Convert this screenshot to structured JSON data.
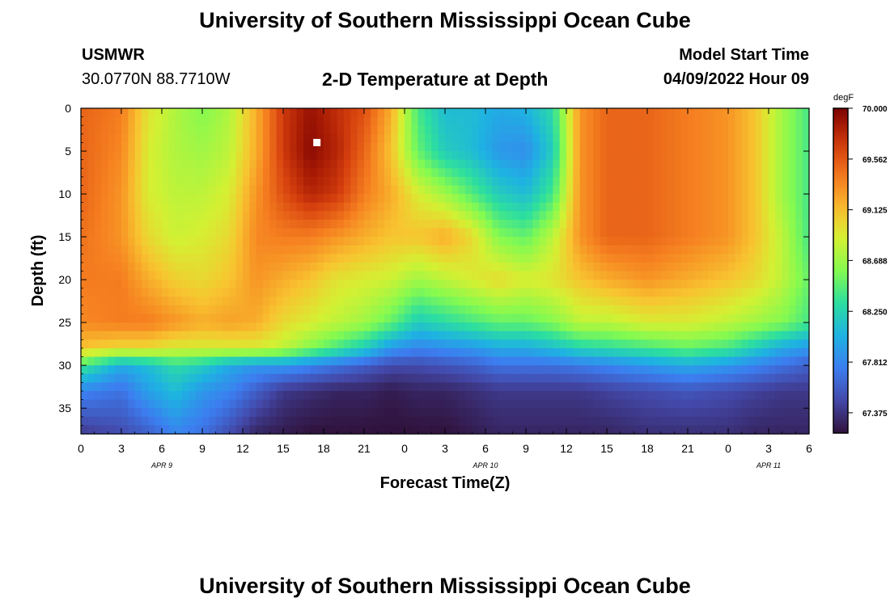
{
  "header": {
    "title": "University of Southern Mississippi Ocean Cube",
    "station_name": "USMWR",
    "coordinates": "30.0770N  88.7710W",
    "plot_title": "2-D Temperature at Depth",
    "model_start_label": "Model Start Time",
    "model_start_value": "04/09/2022 Hour 09"
  },
  "footer": {
    "title": "University of Southern Mississippi Ocean Cube"
  },
  "chart_data": {
    "type": "heatmap",
    "title": "2-D Temperature at Depth",
    "xlabel": "Forecast Time(Z)",
    "ylabel": "Depth (ft)",
    "x_tick_labels": [
      "0",
      "3",
      "6",
      "9",
      "12",
      "15",
      "18",
      "21",
      "0",
      "3",
      "6",
      "9",
      "12",
      "15",
      "18",
      "21",
      "0",
      "3",
      "6"
    ],
    "date_labels": [
      {
        "label": "APR 9",
        "hour": 6
      },
      {
        "label": "APR 10",
        "hour": 30
      },
      {
        "label": "APR 11",
        "hour": 51
      }
    ],
    "x_range_hours": [
      0,
      54
    ],
    "y_tick_labels": [
      "0",
      "5",
      "10",
      "15",
      "20",
      "25",
      "30",
      "35"
    ],
    "y_range_ft": [
      0,
      38
    ],
    "colorbar": {
      "units": "degF",
      "min": 67.2,
      "max": 70.0,
      "tick_labels": [
        "70.000",
        "69.562",
        "69.125",
        "68.688",
        "68.250",
        "67.812",
        "67.375"
      ],
      "tick_values": [
        70.0,
        69.562,
        69.125,
        68.688,
        68.25,
        67.812,
        67.375
      ]
    },
    "marker": {
      "hour": 17.5,
      "depth_ft": 4,
      "label": "model start marker"
    },
    "profile_depths_ft": [
      0,
      5,
      10,
      15,
      20,
      25,
      28,
      30,
      33,
      38
    ],
    "profiles": [
      {
        "hour": 0,
        "temps": [
          69.5,
          69.5,
          69.5,
          69.45,
          69.4,
          69.35,
          69.1,
          68.4,
          67.8,
          67.4
        ]
      },
      {
        "hour": 3,
        "temps": [
          69.4,
          69.35,
          69.3,
          69.3,
          69.4,
          69.4,
          69.0,
          68.0,
          67.7,
          67.5
        ]
      },
      {
        "hour": 5,
        "temps": [
          68.95,
          68.9,
          68.9,
          69.0,
          69.2,
          69.4,
          69.0,
          68.1,
          67.95,
          67.6
        ]
      },
      {
        "hour": 7,
        "temps": [
          68.75,
          68.75,
          68.8,
          68.85,
          69.05,
          69.3,
          68.9,
          68.3,
          68.1,
          67.8
        ]
      },
      {
        "hour": 9,
        "temps": [
          68.6,
          68.7,
          68.8,
          68.9,
          69.0,
          69.2,
          68.9,
          68.2,
          67.9,
          67.7
        ]
      },
      {
        "hour": 11,
        "temps": [
          68.75,
          68.8,
          68.9,
          69.0,
          69.1,
          69.25,
          68.9,
          68.0,
          67.8,
          67.5
        ]
      },
      {
        "hour": 13,
        "temps": [
          69.2,
          69.2,
          69.3,
          69.35,
          69.3,
          69.2,
          68.9,
          67.9,
          67.6,
          67.3
        ]
      },
      {
        "hour": 15,
        "temps": [
          69.7,
          69.7,
          69.6,
          69.4,
          69.2,
          69.0,
          68.8,
          67.9,
          67.4,
          67.25
        ]
      },
      {
        "hour": 17,
        "temps": [
          69.9,
          69.95,
          69.8,
          69.4,
          69.1,
          68.9,
          68.6,
          67.8,
          67.35,
          67.2
        ]
      },
      {
        "hour": 19,
        "temps": [
          69.75,
          69.8,
          69.7,
          69.3,
          68.95,
          68.8,
          68.4,
          67.7,
          67.3,
          67.2
        ]
      },
      {
        "hour": 21,
        "temps": [
          69.6,
          69.5,
          69.4,
          69.2,
          68.9,
          68.7,
          68.2,
          67.6,
          67.3,
          67.2
        ]
      },
      {
        "hour": 23,
        "temps": [
          69.2,
          69.1,
          69.2,
          69.1,
          68.85,
          68.5,
          67.9,
          67.5,
          67.25,
          67.2
        ]
      },
      {
        "hour": 25,
        "temps": [
          68.4,
          68.5,
          68.9,
          69.1,
          68.7,
          68.2,
          67.8,
          67.5,
          67.3,
          67.2
        ]
      },
      {
        "hour": 27,
        "temps": [
          68.1,
          68.2,
          68.7,
          69.2,
          68.8,
          68.3,
          67.85,
          67.55,
          67.3,
          67.2
        ]
      },
      {
        "hour": 29,
        "temps": [
          68.1,
          68.1,
          68.45,
          69.0,
          68.9,
          68.4,
          67.9,
          67.6,
          67.35,
          67.25
        ]
      },
      {
        "hour": 31,
        "temps": [
          68.0,
          67.9,
          68.2,
          68.6,
          69.0,
          68.5,
          68.0,
          67.7,
          67.4,
          67.3
        ]
      },
      {
        "hour": 33,
        "temps": [
          68.05,
          67.85,
          68.1,
          68.5,
          68.9,
          68.5,
          68.0,
          67.7,
          67.4,
          67.3
        ]
      },
      {
        "hour": 35,
        "temps": [
          68.3,
          68.2,
          68.4,
          68.8,
          68.95,
          68.6,
          68.1,
          67.7,
          67.4,
          67.3
        ]
      },
      {
        "hour": 37,
        "temps": [
          69.3,
          69.3,
          69.3,
          69.3,
          69.1,
          68.8,
          68.25,
          67.75,
          67.4,
          67.3
        ]
      },
      {
        "hour": 39,
        "temps": [
          69.5,
          69.5,
          69.5,
          69.5,
          69.2,
          68.8,
          68.3,
          67.8,
          67.45,
          67.3
        ]
      },
      {
        "hour": 42,
        "temps": [
          69.5,
          69.5,
          69.5,
          69.5,
          69.3,
          68.9,
          68.4,
          67.9,
          67.5,
          67.35
        ]
      },
      {
        "hour": 45,
        "temps": [
          69.4,
          69.4,
          69.4,
          69.4,
          69.2,
          68.9,
          68.5,
          68.0,
          67.55,
          67.35
        ]
      },
      {
        "hour": 48,
        "temps": [
          69.3,
          69.3,
          69.3,
          69.3,
          69.1,
          68.8,
          68.4,
          67.9,
          67.5,
          67.35
        ]
      },
      {
        "hour": 50,
        "temps": [
          69.1,
          69.1,
          69.1,
          69.1,
          69.0,
          68.7,
          68.2,
          67.8,
          67.45,
          67.3
        ]
      },
      {
        "hour": 52,
        "temps": [
          68.7,
          68.7,
          68.7,
          68.8,
          68.8,
          68.6,
          68.0,
          67.7,
          67.4,
          67.3
        ]
      },
      {
        "hour": 54,
        "temps": [
          68.4,
          68.4,
          68.4,
          68.4,
          68.5,
          68.4,
          67.9,
          67.6,
          67.4,
          67.3
        ]
      }
    ]
  }
}
